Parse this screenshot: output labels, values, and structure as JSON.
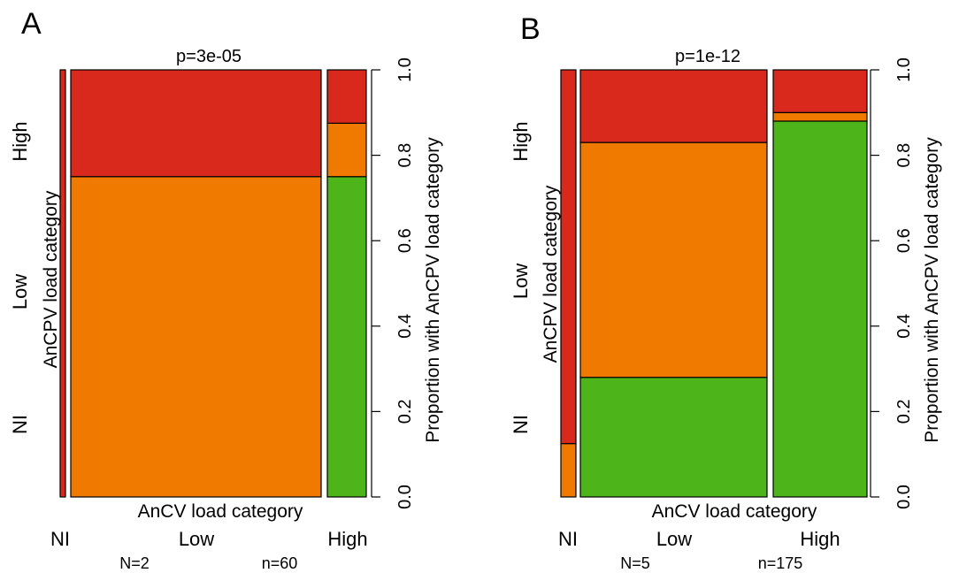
{
  "chart_data": [
    {
      "type": "mosaic",
      "panel_label": "A",
      "title": "p=3e-05",
      "xlabel": "AnCV load category",
      "ylabel": "AnCPV load category",
      "y2label": "Proportion with AnCPV load category",
      "x_categories": [
        "NI",
        "Low",
        "High"
      ],
      "y_categories": [
        "NI",
        "Low",
        "High"
      ],
      "column_widths": [
        2,
        60,
        8
      ],
      "counts_text": [
        "N=2",
        "n=60"
      ],
      "segments": [
        [
          0.0,
          0.0,
          1.0
        ],
        [
          0.0,
          0.75,
          0.25
        ],
        [
          0.75,
          0.125,
          0.125
        ]
      ],
      "y2lim": [
        0.0,
        1.0
      ],
      "y2ticks": [
        "0.0",
        "0.2",
        "0.4",
        "0.6",
        "0.8",
        "1.0"
      ],
      "colors": {
        "NI": "#4db51a",
        "Low": "#f07a00",
        "High": "#d9281c"
      }
    },
    {
      "type": "mosaic",
      "panel_label": "B",
      "title": "p=1e-12",
      "xlabel": "AnCV load category",
      "ylabel": "AnCPV load category",
      "y2label": "Proportion with AnCPV load category",
      "x_categories": [
        "NI",
        "Low",
        "High"
      ],
      "y_categories": [
        "NI",
        "Low",
        "High"
      ],
      "column_widths": [
        5,
        175,
        90
      ],
      "counts_text": [
        "N=5",
        "n=175"
      ],
      "segments": [
        [
          0.0,
          0.125,
          0.875
        ],
        [
          0.28,
          0.55,
          0.17
        ],
        [
          0.88,
          0.02,
          0.1
        ]
      ],
      "y2lim": [
        0.0,
        1.0
      ],
      "y2ticks": [
        "0.0",
        "0.2",
        "0.4",
        "0.6",
        "0.8",
        "1.0"
      ],
      "colors": {
        "NI": "#4db51a",
        "Low": "#f07a00",
        "High": "#d9281c"
      }
    }
  ]
}
